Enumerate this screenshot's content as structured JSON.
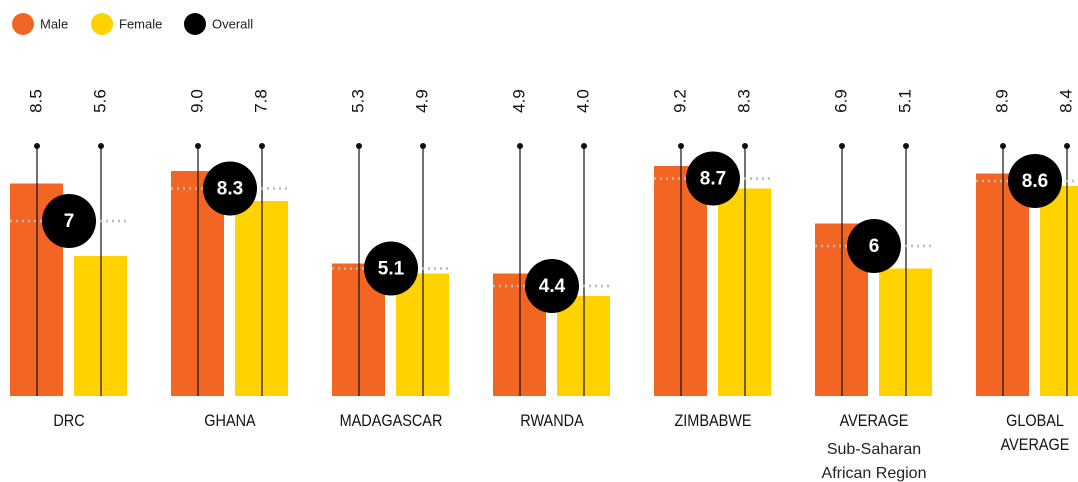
{
  "chart_data": {
    "type": "bar",
    "categories": [
      "DRC",
      "GHANA",
      "MADAGASCAR",
      "RWANDA",
      "ZIMBABWE",
      "AVERAGE",
      "GLOBAL AVERAGE"
    ],
    "category_sublabels": [
      null,
      null,
      null,
      null,
      null,
      "Sub-Saharan African Region",
      null
    ],
    "series": [
      {
        "name": "Male",
        "color": "#f26522",
        "values": [
          8.5,
          9.0,
          5.3,
          4.9,
          9.2,
          6.9,
          8.9
        ],
        "value_labels": [
          "8.5",
          "9.0",
          "5.3",
          "4.9",
          "9.2",
          "6.9",
          "8.9"
        ]
      },
      {
        "name": "Female",
        "color": "#ffd200",
        "values": [
          5.6,
          7.8,
          4.9,
          4.0,
          8.3,
          5.1,
          8.4
        ],
        "value_labels": [
          "5.6",
          "7.8",
          "4.9",
          "4.0",
          "8.3",
          "5.1",
          "8.4"
        ]
      },
      {
        "name": "Overall",
        "color": "#000000",
        "values": [
          7,
          8.3,
          5.1,
          4.4,
          8.7,
          6,
          8.6
        ]
      }
    ],
    "ylim": [
      0,
      10
    ]
  }
}
